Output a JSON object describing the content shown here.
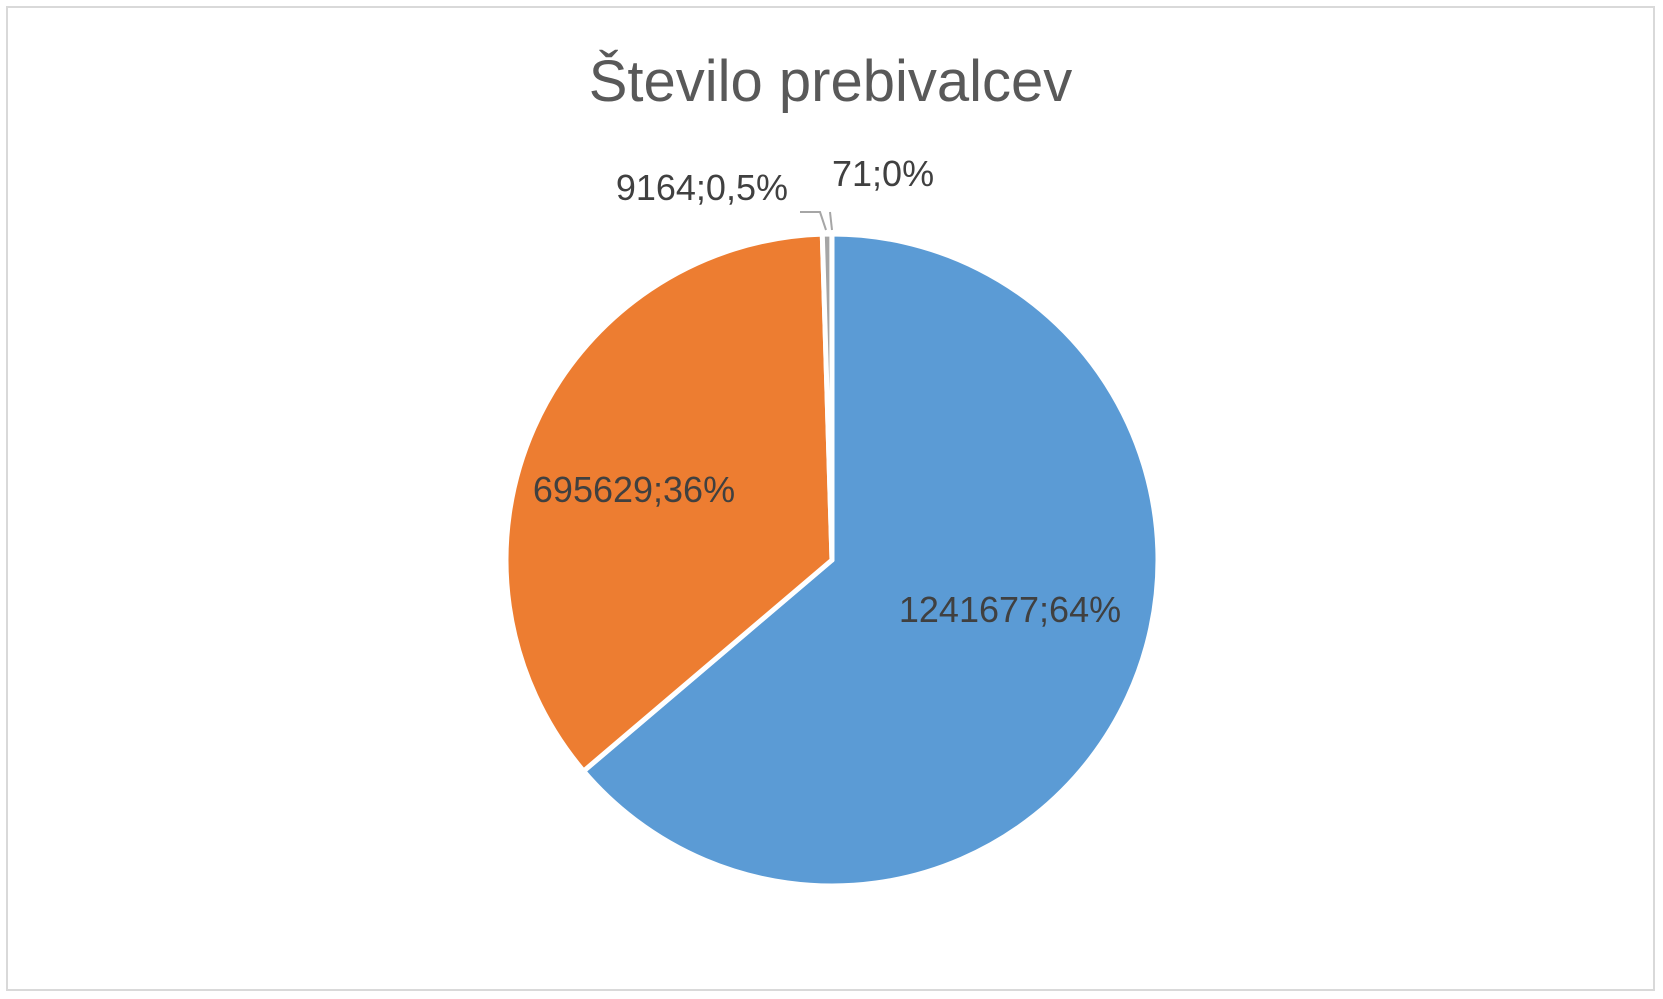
{
  "chart_data": {
    "type": "pie",
    "title": "Število prebivalcev",
    "slices": [
      {
        "value": 1241677,
        "label": "1241677;64%",
        "color": "#5B9BD5"
      },
      {
        "value": 695629,
        "label": "695629;36%",
        "color": "#ED7D31"
      },
      {
        "value": 9164,
        "label": "9164;0,5%",
        "color": "#A5A5A5"
      },
      {
        "value": 71,
        "label": "71;0%",
        "color": "#FFC000"
      }
    ],
    "legend": "none"
  }
}
